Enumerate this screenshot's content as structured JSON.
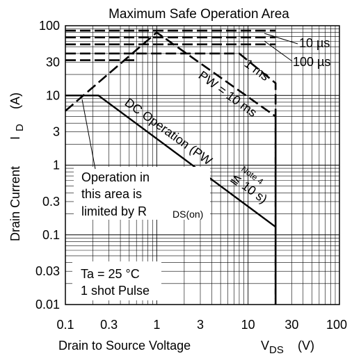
{
  "chart_data": {
    "type": "line",
    "title": "Maximum Safe Operation Area",
    "xlabel": "Drain to Source Voltage",
    "xlabel_symbol": "V",
    "xlabel_subscript": "DS",
    "xlabel_unit": "(V)",
    "ylabel": "Drain Current",
    "ylabel_symbol": "I",
    "ylabel_subscript": "D",
    "ylabel_unit": "(A)",
    "xscale": "log",
    "yscale": "log",
    "xlim": [
      0.1,
      100
    ],
    "ylim": [
      0.01,
      100
    ],
    "grid": true,
    "x_ticks": [
      {
        "v": 0.1,
        "label": "0.1"
      },
      {
        "v": 0.3,
        "label": "0.3"
      },
      {
        "v": 1,
        "label": "1"
      },
      {
        "v": 3,
        "label": "3"
      },
      {
        "v": 10,
        "label": "10"
      },
      {
        "v": 30,
        "label": "30"
      },
      {
        "v": 100,
        "label": "100"
      }
    ],
    "y_ticks": [
      {
        "v": 0.01,
        "label": "0.01"
      },
      {
        "v": 0.03,
        "label": "0.03"
      },
      {
        "v": 0.1,
        "label": "0.1"
      },
      {
        "v": 0.3,
        "label": "0.3"
      },
      {
        "v": 1,
        "label": "1"
      },
      {
        "v": 3,
        "label": "3"
      },
      {
        "v": 10,
        "label": "10"
      },
      {
        "v": 30,
        "label": "30"
      },
      {
        "v": 100,
        "label": "100"
      }
    ],
    "series": [
      {
        "name": "DC Operation (PW ≦ 10 s)",
        "style": "solid",
        "x": [
          0.1,
          0.23,
          20,
          20
        ],
        "y": [
          10,
          10,
          0.13,
          0.01
        ]
      },
      {
        "name": "PW = 10 ms",
        "style": "dashed",
        "x": [
          0.1,
          1.0,
          20,
          20
        ],
        "y": [
          6,
          80,
          5,
          0.01
        ]
      },
      {
        "name": "1 ms",
        "style": "dashed",
        "x": [
          0.6,
          8,
          20,
          20
        ],
        "y": [
          40,
          40,
          15,
          0.01
        ]
      },
      {
        "name": "100 µs",
        "style": "dashed",
        "x": [
          0.1,
          20
        ],
        "y": [
          68,
          68
        ]
      },
      {
        "name": "10 µs",
        "style": "dashed",
        "x": [
          0.1,
          20
        ],
        "y": [
          85,
          85
        ]
      },
      {
        "name": "",
        "style": "dashed",
        "x": [
          0.1,
          0.6
        ],
        "y": [
          32,
          32
        ]
      },
      {
        "name": "",
        "style": "dashed",
        "x": [
          0.1,
          0.6
        ],
        "y": [
          40,
          40
        ]
      },
      {
        "name": "",
        "style": "dashed",
        "x": [
          0.1,
          20
        ],
        "y": [
          54,
          54
        ]
      }
    ],
    "annotations": {
      "us10": "10 µs",
      "us100": "100 µs",
      "ms1": "1 ms",
      "pw10ms": "PW = 10 ms",
      "dc": "DC Operation (PW",
      "note": "Note 4",
      "dc_limit": "≦ 10 s)",
      "rds_line1": "Operation in",
      "rds_line2": "this area is",
      "rds_line3": "limited by R",
      "rds_sub": "DS(on)",
      "cond1": "Ta = 25 °C",
      "cond2": "1 shot Pulse"
    }
  }
}
